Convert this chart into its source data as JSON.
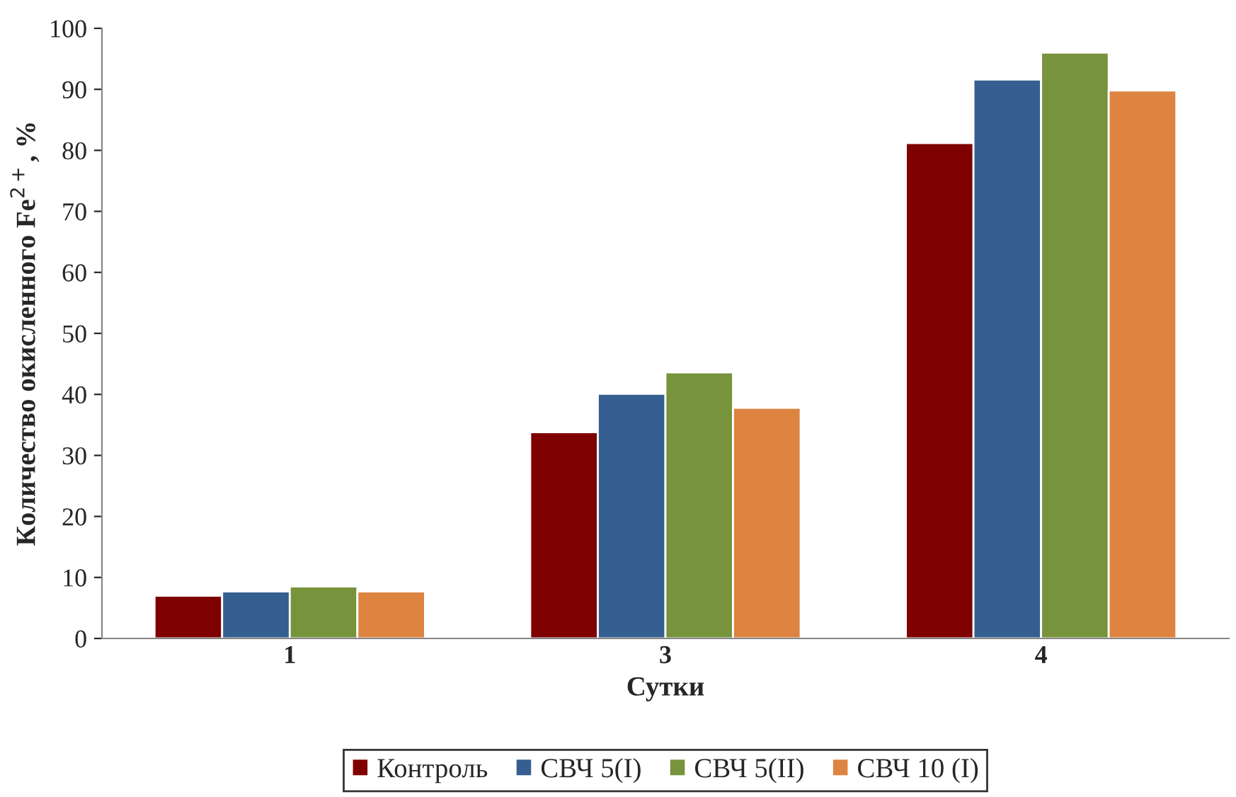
{
  "chart_data": {
    "type": "bar",
    "xlabel": "Сутки",
    "ylabel": "Количество окисленного Fe$^{2+}$, %",
    "categories": [
      "1",
      "3",
      "4"
    ],
    "series": [
      {
        "name": "Контроль",
        "color": "#7f0000",
        "values": [
          7.0,
          33.8,
          81.2
        ]
      },
      {
        "name": "СВЧ 5(I)",
        "color": "#355f91",
        "values": [
          7.7,
          40.1,
          91.6
        ]
      },
      {
        "name": "СВЧ 5(II)",
        "color": "#77933c",
        "values": [
          8.5,
          43.6,
          96.0
        ]
      },
      {
        "name": "СВЧ 10 (I)",
        "color": "#dd8441",
        "values": [
          7.7,
          37.8,
          89.8
        ]
      }
    ],
    "ylim": [
      0,
      100
    ],
    "yticks": [
      0,
      10,
      20,
      30,
      40,
      50,
      60,
      70,
      80,
      90,
      100
    ],
    "grid": false,
    "legend": "bottom"
  }
}
